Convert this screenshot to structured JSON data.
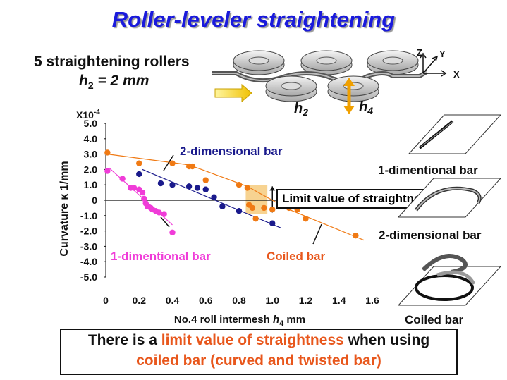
{
  "title": "Roller-leveler straightening",
  "setup": {
    "line1": "5 straightening rollers",
    "h2_symbol": "h",
    "h2_sub": "2",
    "h2_value": " = 2 mm"
  },
  "roller_labels": {
    "h2": "h",
    "h2_sub": "2",
    "h4": "h",
    "h4_sub": "4",
    "z": "Z",
    "y": "Y",
    "x": "X"
  },
  "callout": "Limit value of straightness",
  "side_labels": [
    "1-dimentional bar",
    "2-dimensional bar",
    "Coiled bar"
  ],
  "bottom": {
    "part1": "There is a ",
    "highlight1": "limit value of straightness",
    "part2": " when using",
    "highlight2": "coiled bar (curved and twisted bar)"
  },
  "colors": {
    "title": "#1a1adc",
    "pink": "#f03cd8",
    "navy": "#1a1a8c",
    "orange": "#f07a14",
    "highlight": "#e8571c"
  },
  "chart_data": {
    "type": "scatter",
    "xlabel": "No.4 roll intermesh h4 mm",
    "ylabel": "Curvature κ 1/mm",
    "y_multiplier": "X10-4",
    "xlim": [
      0,
      1.6
    ],
    "ylim": [
      -5,
      5
    ],
    "xticks": [
      "0",
      "0.2",
      "0.4",
      "0.6",
      "0.8",
      "1.0",
      "1.2",
      "1.4",
      "1.6"
    ],
    "yticks": [
      "5.0",
      "4.0",
      "3.0",
      "2.0",
      "1.0",
      "0",
      "-1.0",
      "-2.0",
      "-3.0",
      "-4.0",
      "-5.0"
    ],
    "series": [
      {
        "name": "1-dimentional bar",
        "color": "#f03cd8",
        "points": [
          [
            0.01,
            1.9
          ],
          [
            0.1,
            1.4
          ],
          [
            0.15,
            0.8
          ],
          [
            0.17,
            0.8
          ],
          [
            0.2,
            0.7
          ],
          [
            0.22,
            0.5
          ],
          [
            0.23,
            0.1
          ],
          [
            0.24,
            -0.2
          ],
          [
            0.25,
            -0.4
          ],
          [
            0.27,
            -0.5
          ],
          [
            0.28,
            -0.6
          ],
          [
            0.3,
            -0.7
          ],
          [
            0.32,
            -0.8
          ],
          [
            0.35,
            -0.9
          ],
          [
            0.4,
            -2.1
          ]
        ],
        "trend": [
          [
            0.02,
            2.1
          ],
          [
            0.4,
            -1.6
          ]
        ]
      },
      {
        "name": "2-dimensional bar",
        "color": "#1a1a8c",
        "points": [
          [
            0.2,
            1.7
          ],
          [
            0.33,
            1.1
          ],
          [
            0.4,
            1.0
          ],
          [
            0.5,
            0.9
          ],
          [
            0.55,
            0.8
          ],
          [
            0.6,
            0.7
          ],
          [
            0.65,
            0.2
          ],
          [
            0.7,
            -0.4
          ],
          [
            0.8,
            -0.7
          ],
          [
            1.0,
            -1.5
          ]
        ],
        "trend": [
          [
            0.22,
            2.0
          ],
          [
            1.05,
            -1.8
          ]
        ]
      },
      {
        "name": "Coiled bar",
        "color": "#f07a14",
        "points": [
          [
            0.01,
            3.1
          ],
          [
            0.2,
            2.4
          ],
          [
            0.4,
            2.4
          ],
          [
            0.5,
            2.2
          ],
          [
            0.52,
            2.2
          ],
          [
            0.6,
            1.3
          ],
          [
            0.8,
            1.0
          ],
          [
            0.85,
            0.8
          ],
          [
            0.86,
            -0.3
          ],
          [
            0.88,
            -0.5
          ],
          [
            0.9,
            -1.2
          ],
          [
            0.95,
            -0.5
          ],
          [
            1.0,
            -0.6
          ],
          [
            1.05,
            -0.4
          ],
          [
            1.1,
            -0.5
          ],
          [
            1.15,
            -0.6
          ],
          [
            1.2,
            -1.2
          ],
          [
            1.5,
            -2.3
          ]
        ],
        "trend": [
          [
            0.01,
            3.0
          ],
          [
            0.5,
            2.3
          ],
          [
            0.85,
            0.9
          ],
          [
            1.1,
            -0.6
          ],
          [
            1.55,
            -2.6
          ]
        ]
      }
    ],
    "annotations": [
      "2-dimensional bar",
      "1-dimentional bar",
      "Coiled bar"
    ]
  }
}
